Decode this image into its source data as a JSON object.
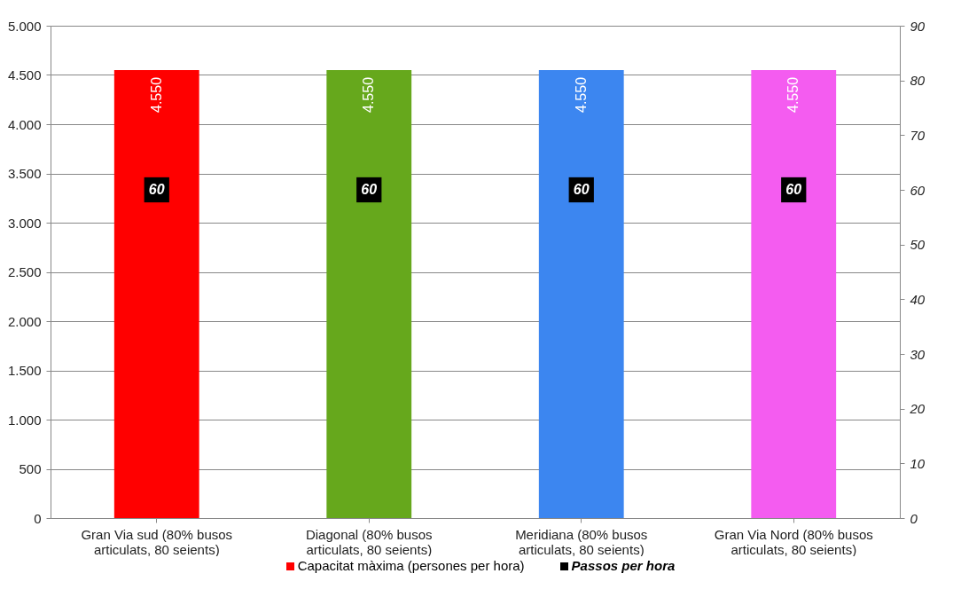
{
  "chart_data": {
    "type": "bar",
    "categories": [
      "Gran Via sud (80% busos articulats, 80 seients)",
      "Diagonal (80% busos articulats, 80 seients)",
      "Meridiana (80% busos articulats, 80 seients)",
      "Gran Via Nord (80% busos articulats, 80 seients)"
    ],
    "series": [
      {
        "name": "Capacitat màxima (persones per hora)",
        "colors": [
          "#ff0000",
          "#66a81c",
          "#3c86f0",
          "#f45cf0"
        ],
        "values": [
          4550,
          4550,
          4550,
          4550
        ],
        "value_labels": [
          "4.550",
          "4.550",
          "4.550",
          "4.550"
        ]
      },
      {
        "name": "Passos per hora",
        "type": "scatter",
        "axis": "y2",
        "color": "#000000",
        "marker": "square",
        "values": [
          60,
          60,
          60,
          60
        ],
        "value_labels": [
          "60",
          "60",
          "60",
          "60"
        ]
      }
    ],
    "ylim": [
      0,
      5000
    ],
    "yticks": [
      0,
      500,
      {
        "value": 1000,
        "label": "1.000"
      },
      {
        "value": 1500,
        "label": "1.500"
      },
      {
        "value": 2000,
        "label": "2.000"
      },
      {
        "value": 2500,
        "label": "2.500"
      },
      {
        "value": 3000,
        "label": "3.000"
      },
      {
        "value": 3500,
        "label": "3.500"
      },
      {
        "value": 4000,
        "label": "4.000"
      },
      {
        "value": 4500,
        "label": "4.500"
      },
      {
        "value": 5000,
        "label": "5.000"
      }
    ],
    "y2lim": [
      0,
      90
    ],
    "y2ticks": [
      0,
      10,
      20,
      30,
      40,
      50,
      60,
      70,
      80,
      90
    ],
    "grid": "y",
    "legend": "bottom"
  }
}
